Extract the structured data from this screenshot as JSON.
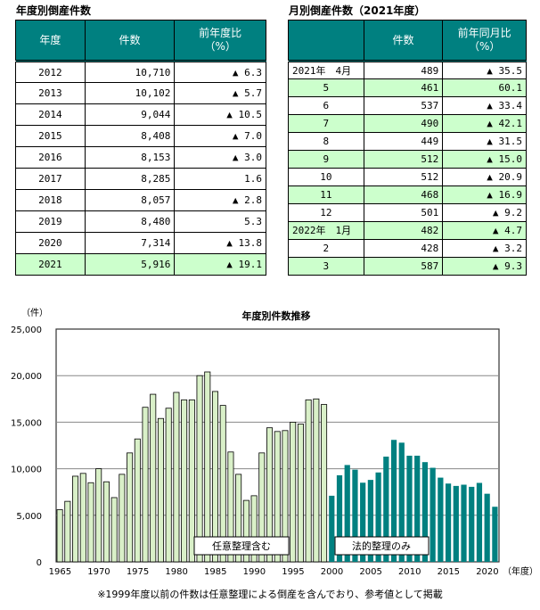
{
  "annual_table": {
    "title": "年度別倒産件数",
    "headers": [
      "年度",
      "件数",
      "前年度比\n（%）"
    ],
    "rows": [
      [
        "2012",
        "10,710",
        "▲ 6.3"
      ],
      [
        "2013",
        "10,102",
        "▲ 5.7"
      ],
      [
        "2014",
        "9,044",
        "▲ 10.5"
      ],
      [
        "2015",
        "8,408",
        "▲ 7.0"
      ],
      [
        "2016",
        "8,153",
        "▲ 3.0"
      ],
      [
        "2017",
        "8,285",
        "1.6"
      ],
      [
        "2018",
        "8,057",
        "▲ 2.8"
      ],
      [
        "2019",
        "8,480",
        "5.3"
      ],
      [
        "2020",
        "7,314",
        "▲ 13.8"
      ],
      [
        "2021",
        "5,916",
        "▲ 19.1"
      ]
    ]
  },
  "monthly_table": {
    "title": "月別倒産件数（2021年度）",
    "headers": [
      "",
      "件数",
      "前年同月比\n（%）"
    ],
    "rows": [
      [
        "2021年　4月",
        "489",
        "▲ 35.5"
      ],
      [
        "5",
        "461",
        "60.1"
      ],
      [
        "6",
        "537",
        "▲ 33.4"
      ],
      [
        "7",
        "490",
        "▲ 42.1"
      ],
      [
        "8",
        "449",
        "▲ 31.5"
      ],
      [
        "9",
        "512",
        "▲ 15.0"
      ],
      [
        "10",
        "512",
        "▲ 20.9"
      ],
      [
        "11",
        "468",
        "▲ 16.9"
      ],
      [
        "12",
        "501",
        "▲ 9.2"
      ],
      [
        "2022年　1月",
        "482",
        "▲ 4.7"
      ],
      [
        "2",
        "428",
        "▲ 3.2"
      ],
      [
        "3",
        "587",
        "▲ 9.3"
      ]
    ]
  },
  "colors": {
    "header": "#008080",
    "highlight": "#ccffcc",
    "bar_pre2000": "#d9f0c8",
    "bar_post2000": "#008080"
  },
  "chart_data": {
    "type": "bar",
    "title": "年度別件数推移",
    "ylabel": "（件）",
    "xlabel": "（年度）",
    "ylim": [
      0,
      25000
    ],
    "yticks": [
      "0",
      "5,000",
      "10,000",
      "15,000",
      "20,000",
      "25,000"
    ],
    "xticks": [
      "1965",
      "1970",
      "1975",
      "1980",
      "1985",
      "1990",
      "1995",
      "2000",
      "2005",
      "2010",
      "2015",
      "2020"
    ],
    "start_year": 1965,
    "values": [
      5600,
      6500,
      9200,
      9500,
      8500,
      10000,
      8600,
      6900,
      9400,
      11700,
      13200,
      16600,
      18000,
      15400,
      16500,
      18200,
      17400,
      17400,
      20000,
      20400,
      18300,
      16800,
      11800,
      9400,
      6600,
      7100,
      11700,
      14400,
      14000,
      14100,
      15000,
      14800,
      17400,
      17500,
      16900,
      7100,
      9300,
      10400,
      9900,
      8500,
      8800,
      9600,
      11300,
      13100,
      12800,
      11400,
      11400,
      10710,
      10102,
      9044,
      8408,
      8153,
      8285,
      8057,
      8480,
      7314,
      5916
    ],
    "legend": [
      "任意整理含む",
      "法的整理のみ"
    ],
    "footnote": "※1999年度以前の件数は任意整理による倒産を含んでおり、参考値として掲載"
  }
}
